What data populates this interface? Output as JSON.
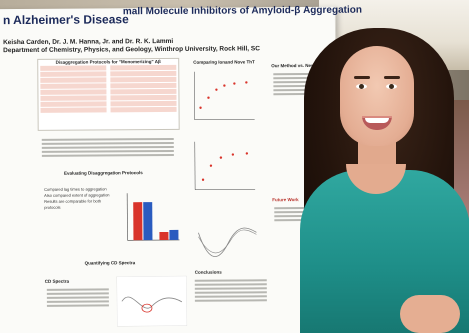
{
  "poster": {
    "title_line1": "n Alzheimer's Disease",
    "title_partial": "mall Molecule Inhibitors of Amyloid-β Aggregation",
    "authors": "Keisha Carden, Dr. J. M. Hanna, Jr. and Dr. R. K. Lammi",
    "department": "Department of Chemistry, Physics, and Geology, Winthrop University, Rock Hill, SC",
    "sections": {
      "disaggregation_table": "Disaggregation Protocols for \"Monomerizing\" Aβ",
      "evaluating": "Evaluating Disaggregation Protocols",
      "quantifying": "Quantifying CD Spectra",
      "comparing": "Comparing Ionand Nove ThT",
      "conclusions": "Conclusions",
      "third_method": "Our Method vs. New Method",
      "future": "Future Work",
      "cd_spectra": "CD Spectra"
    },
    "bullets": [
      "Compared lag times to aggregation",
      "Also compared extent of aggregation",
      "Results are comparable for both protocols"
    ]
  },
  "colors": {
    "title": "#1c2a5a",
    "table_pink": "#f6d7cf",
    "bar_red": "#d9342b",
    "bar_blue": "#2a5bbf",
    "shirt": "#1e8e88"
  }
}
